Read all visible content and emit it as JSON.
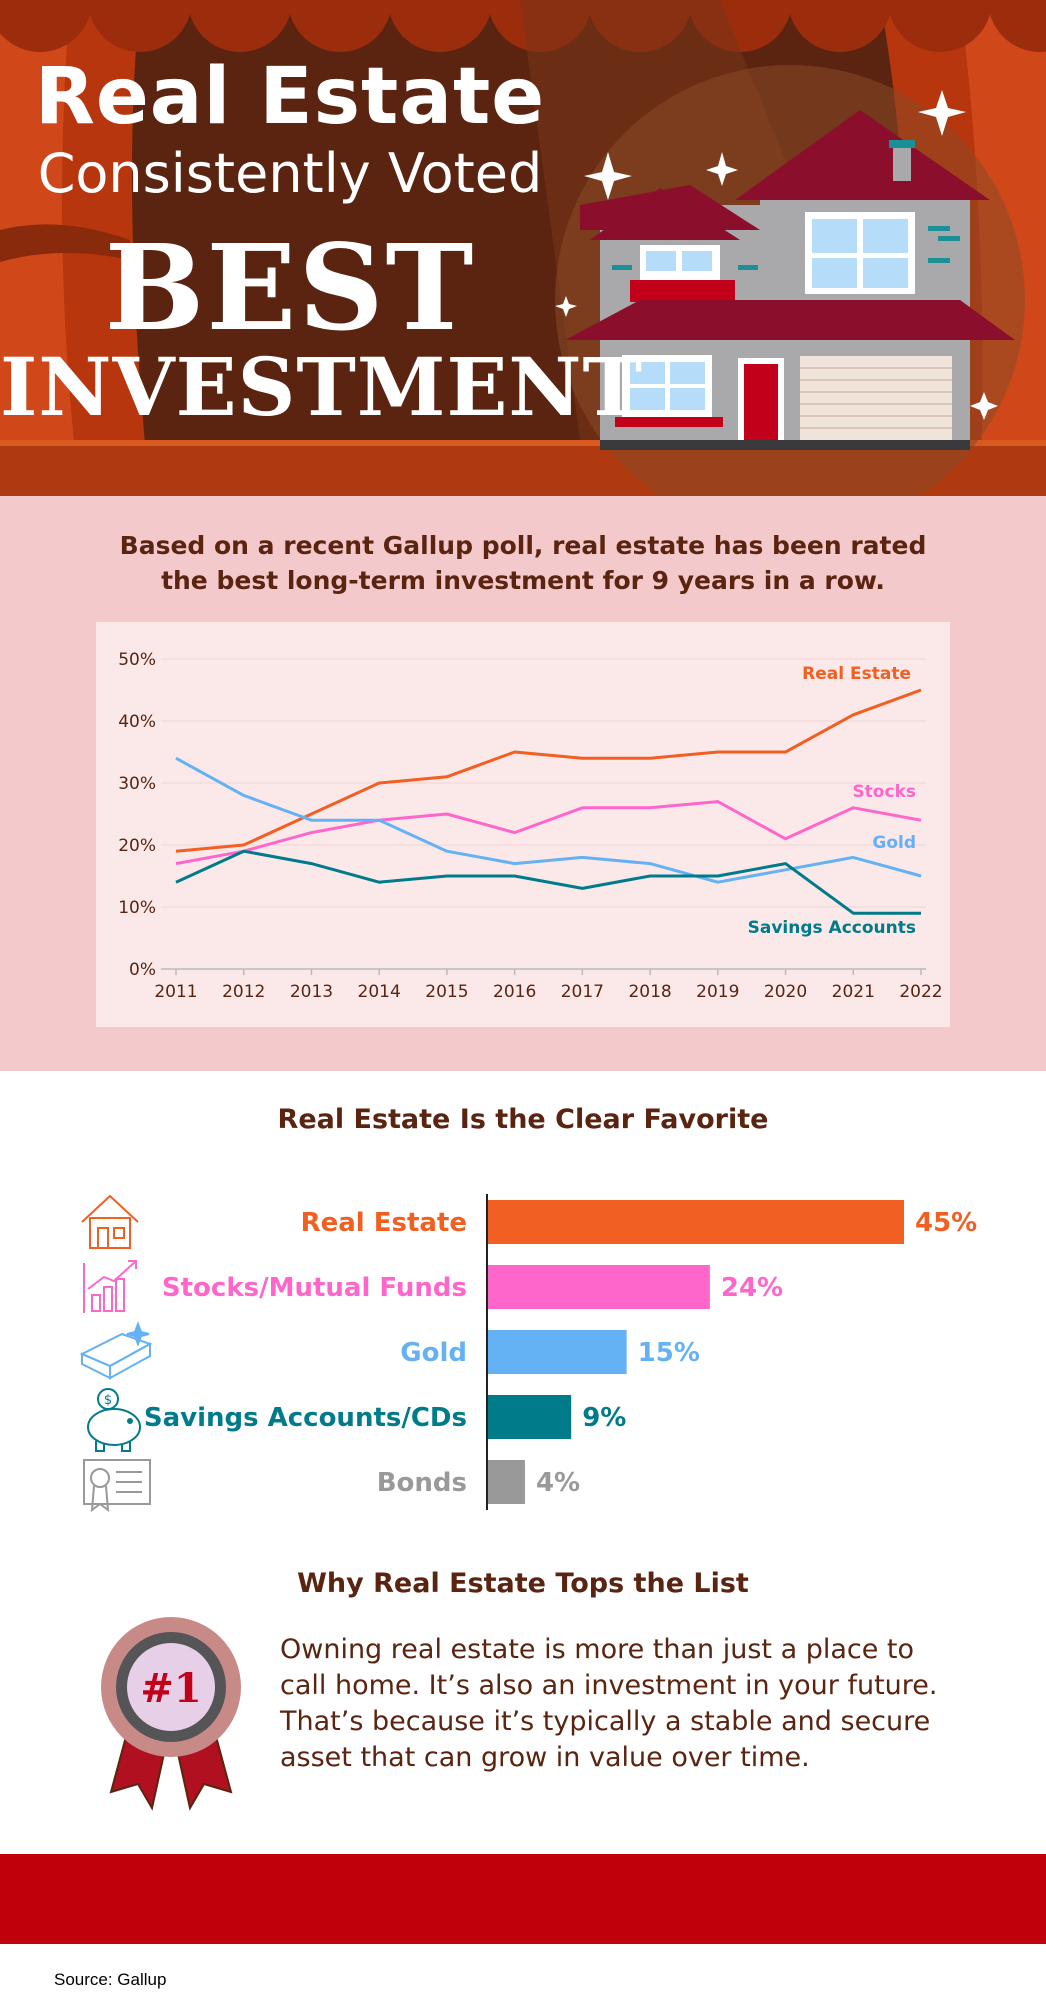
{
  "colors": {
    "real_estate": "#f15f22",
    "stocks": "#ff66cc",
    "gold": "#64b1f4",
    "savings": "#007b8a",
    "bonds": "#999999",
    "hero_bg": "#5a2410",
    "curtain": "#b8360d",
    "pink_bg": "#f4c9cb",
    "footer_red": "#c0000a",
    "text_brown": "#5a2410"
  },
  "hero": {
    "line1": "Real Estate",
    "line2": "Consistently Voted",
    "line3": "BEST",
    "line4": "INVESTMENT",
    "illustration": "house-icon"
  },
  "intro": "Based on a recent Gallup poll, real estate has been rated the best long-term investment for 9 years in a row.",
  "chart_data": [
    {
      "type": "line",
      "x": [
        "2011",
        "2012",
        "2013",
        "2014",
        "2015",
        "2016",
        "2017",
        "2018",
        "2019",
        "2020",
        "2021",
        "2022"
      ],
      "ylim": [
        0,
        50
      ],
      "yticks": [
        "0%",
        "10%",
        "20%",
        "30%",
        "40%",
        "50%"
      ],
      "grid": true,
      "series": [
        {
          "name": "Real Estate",
          "color": "#f15f22",
          "values": [
            19,
            20,
            25,
            30,
            31,
            35,
            34,
            34,
            35,
            35,
            41,
            45
          ]
        },
        {
          "name": "Stocks",
          "color": "#ff66cc",
          "values": [
            17,
            19,
            22,
            24,
            25,
            22,
            26,
            26,
            27,
            21,
            26,
            24
          ]
        },
        {
          "name": "Gold",
          "color": "#64b1f4",
          "values": [
            34,
            28,
            24,
            24,
            19,
            17,
            18,
            17,
            14,
            16,
            18,
            15
          ]
        },
        {
          "name": "Savings Accounts",
          "color": "#007b8a",
          "values": [
            14,
            19,
            17,
            14,
            15,
            15,
            13,
            15,
            15,
            17,
            9,
            9
          ]
        }
      ]
    },
    {
      "type": "bar",
      "title": "Real Estate Is the Clear Favorite",
      "orientation": "horizontal",
      "categories": [
        "Real Estate",
        "Stocks/Mutual Funds",
        "Gold",
        "Savings Accounts/CDs",
        "Bonds"
      ],
      "values": [
        45,
        24,
        15,
        9,
        4
      ],
      "value_labels": [
        "45%",
        "24%",
        "15%",
        "9%",
        "4%"
      ],
      "colors": [
        "#f15f22",
        "#ff66cc",
        "#64b1f4",
        "#007b8a",
        "#999999"
      ],
      "icons": [
        "house-icon",
        "growth-chart-icon",
        "gold-bar-icon",
        "piggy-bank-icon",
        "bond-certificate-icon"
      ]
    }
  ],
  "why": {
    "heading": "Why Real Estate Tops the List",
    "badge_text": "#1",
    "body": "Owning real estate is more than just a place to call home. It’s also an investment in your future. That’s because it’s typically a stable and secure asset that can grow in value over time."
  },
  "source": "Source: Gallup"
}
